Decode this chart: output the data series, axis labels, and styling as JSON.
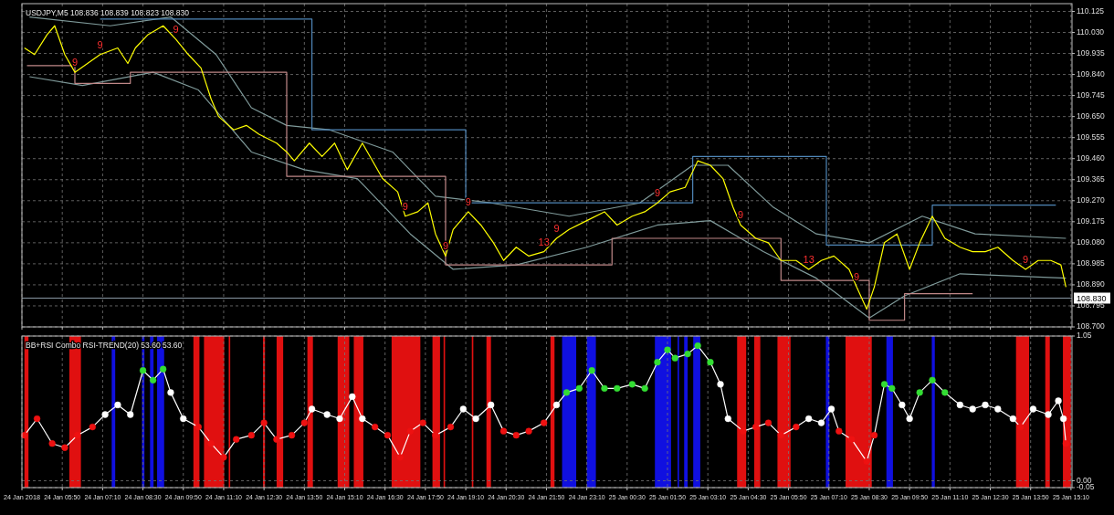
{
  "chart_data": [
    {
      "type": "line",
      "title": "USDJPY,M5  108.836 108.839 108.823 108.830",
      "grid": true,
      "tick_labels": "y",
      "xlim": [
        "2018-01-24T04:30",
        "2018-01-25T15:12"
      ],
      "xticks": [
        {
          "value": "2018-01-24T04:30",
          "label": null
        },
        {
          "value": "2018-01-24T05:50",
          "label": null
        },
        {
          "value": "2018-01-24T07:10",
          "label": null
        },
        {
          "value": "2018-01-24T08:30",
          "label": null
        },
        {
          "value": "2018-01-24T09:50",
          "label": null
        },
        {
          "value": "2018-01-24T11:10",
          "label": null
        },
        {
          "value": "2018-01-24T12:30",
          "label": null
        },
        {
          "value": "2018-01-24T13:50",
          "label": null
        },
        {
          "value": "2018-01-24T15:10",
          "label": null
        },
        {
          "value": "2018-01-24T16:30",
          "label": null
        },
        {
          "value": "2018-01-24T17:50",
          "label": null
        },
        {
          "value": "2018-01-24T19:10",
          "label": null
        },
        {
          "value": "2018-01-24T20:30",
          "label": null
        },
        {
          "value": "2018-01-24T21:50",
          "label": null
        },
        {
          "value": "2018-01-24T23:10",
          "label": null
        },
        {
          "value": "2018-01-25T00:30",
          "label": null
        },
        {
          "value": "2018-01-25T01:50",
          "label": null
        },
        {
          "value": "2018-01-25T03:10",
          "label": null
        },
        {
          "value": "2018-01-25T04:30",
          "label": null
        },
        {
          "value": "2018-01-25T05:50",
          "label": null
        },
        {
          "value": "2018-01-25T07:10",
          "label": null
        },
        {
          "value": "2018-01-25T08:30",
          "label": null
        },
        {
          "value": "2018-01-25T09:50",
          "label": null
        },
        {
          "value": "2018-01-25T11:10",
          "label": null
        },
        {
          "value": "2018-01-25T12:30",
          "label": null
        },
        {
          "value": "2018-01-25T13:50",
          "label": null
        },
        {
          "value": "2018-01-25T15:10",
          "label": null
        }
      ],
      "ylim": [
        108.7,
        110.16
      ],
      "yticks": [
        110.125,
        {
          "value": 110.03,
          "label": "110.030"
        },
        109.935,
        {
          "value": 109.84,
          "label": "109.840"
        },
        109.745,
        {
          "value": 109.65,
          "label": "109.650"
        },
        109.555,
        {
          "value": 109.46,
          "label": "109.460"
        },
        109.365,
        {
          "value": 109.27,
          "label": "109.270"
        },
        109.175,
        {
          "value": 109.08,
          "label": "109.080"
        },
        108.985,
        {
          "value": 108.89,
          "label": "108.890"
        },
        108.795,
        {
          "value": 108.7,
          "label": "108.700"
        }
      ],
      "ref_lines": [
        {
          "axis": "y",
          "value": 108.83,
          "label": "108.830",
          "color": "#8a9aa6"
        }
      ],
      "series": [
        {
          "type": "line",
          "color": "#7f9a9a",
          "x": [
            "2018-01-24T04:45",
            "2018-01-24T07:25",
            "2018-01-24T09:25",
            "2018-01-24T10:55",
            "2018-01-24T12:05",
            "2018-01-24T13:15",
            "2018-01-24T14:40",
            "2018-01-24T16:45",
            "2018-01-24T18:10",
            "2018-01-24T20:00",
            "2018-01-24T22:35",
            "2018-01-25T00:55",
            "2018-01-25T02:40",
            "2018-01-25T03:50",
            "2018-01-25T05:20",
            "2018-01-25T06:45",
            "2018-01-25T08:30",
            "2018-01-25T10:15",
            "2018-01-25T12:00",
            "2018-01-25T15:00"
          ],
          "values": [
            110.1,
            110.06,
            110.1,
            109.93,
            109.69,
            109.61,
            109.59,
            109.49,
            109.29,
            109.26,
            109.2,
            109.26,
            109.43,
            109.43,
            109.24,
            109.12,
            109.08,
            109.2,
            109.12,
            109.1
          ]
        },
        {
          "type": "line",
          "color": "#7f9a9a",
          "x": [
            "2018-01-24T04:45",
            "2018-01-24T06:30",
            "2018-01-24T08:50",
            "2018-01-24T10:20",
            "2018-01-24T12:05",
            "2018-01-24T13:50",
            "2018-01-24T15:35",
            "2018-01-24T17:20",
            "2018-01-24T18:45",
            "2018-01-24T20:50",
            "2018-01-24T23:10",
            "2018-01-25T01:30",
            "2018-01-25T03:15",
            "2018-01-25T05:00",
            "2018-01-25T06:45",
            "2018-01-25T08:30",
            "2018-01-25T09:40",
            "2018-01-25T11:30",
            "2018-01-25T15:00"
          ],
          "values": [
            109.83,
            109.79,
            109.85,
            109.77,
            109.49,
            109.41,
            109.37,
            109.12,
            108.96,
            108.98,
            109.06,
            109.16,
            109.18,
            109.04,
            108.92,
            108.74,
            108.84,
            108.94,
            108.92
          ]
        },
        {
          "type": "step",
          "color": "#4f86b8",
          "x": [
            "2018-01-24T07:05",
            "2018-01-24T14:05",
            "2018-01-24T19:10",
            "2018-01-25T02:40",
            "2018-01-25T07:05",
            "2018-01-25T10:35",
            "2018-01-25T14:40"
          ],
          "values": [
            110.09,
            109.59,
            109.26,
            109.47,
            109.07,
            109.25,
            109.25
          ]
        },
        {
          "type": "step",
          "color": "#c08888",
          "x": [
            "2018-01-24T04:40",
            "2018-01-24T06:15",
            "2018-01-24T08:05",
            "2018-01-24T13:15",
            "2018-01-24T18:30",
            "2018-01-25T00:00",
            "2018-01-25T05:35",
            "2018-01-25T08:30",
            "2018-01-25T09:40",
            "2018-01-25T11:55"
          ],
          "values": [
            109.88,
            109.8,
            109.85,
            109.38,
            108.98,
            109.1,
            108.91,
            108.73,
            108.85,
            108.85
          ]
        },
        {
          "type": "line",
          "color": "#ffff00",
          "x": [
            "2018-01-24T04:35",
            "2018-01-24T04:55",
            "2018-01-24T05:20",
            "2018-01-24T05:35",
            "2018-01-24T05:55",
            "2018-01-24T06:15",
            "2018-01-24T06:40",
            "2018-01-24T07:05",
            "2018-01-24T07:40",
            "2018-01-24T08:00",
            "2018-01-24T08:15",
            "2018-01-24T08:40",
            "2018-01-24T09:10",
            "2018-01-24T09:35",
            "2018-01-24T10:00",
            "2018-01-24T10:25",
            "2018-01-24T10:45",
            "2018-01-24T11:00",
            "2018-01-24T11:30",
            "2018-01-24T11:55",
            "2018-01-24T12:20",
            "2018-01-24T12:55",
            "2018-01-24T13:15",
            "2018-01-24T13:30",
            "2018-01-24T14:00",
            "2018-01-24T14:25",
            "2018-01-24T14:50",
            "2018-01-24T15:15",
            "2018-01-24T15:45",
            "2018-01-24T16:00",
            "2018-01-24T16:25",
            "2018-01-24T16:55",
            "2018-01-24T17:10",
            "2018-01-24T17:35",
            "2018-01-24T17:55",
            "2018-01-24T18:10",
            "2018-01-24T18:30",
            "2018-01-24T18:45",
            "2018-01-24T19:15",
            "2018-01-24T19:40",
            "2018-01-24T20:05",
            "2018-01-24T20:25",
            "2018-01-24T20:50",
            "2018-01-24T21:15",
            "2018-01-24T21:45",
            "2018-01-24T22:10",
            "2018-01-24T22:35",
            "2018-01-24T23:10",
            "2018-01-24T23:45",
            "2018-01-25T00:10",
            "2018-01-25T00:40",
            "2018-01-25T01:05",
            "2018-01-25T01:30",
            "2018-01-25T01:55",
            "2018-01-25T02:25",
            "2018-01-25T02:50",
            "2018-01-25T03:15",
            "2018-01-25T03:40",
            "2018-01-25T04:00",
            "2018-01-25T04:15",
            "2018-01-25T04:45",
            "2018-01-25T05:10",
            "2018-01-25T05:35",
            "2018-01-25T06:05",
            "2018-01-25T06:30",
            "2018-01-25T06:55",
            "2018-01-25T07:20",
            "2018-01-25T07:50",
            "2018-01-25T08:05",
            "2018-01-25T08:25",
            "2018-01-25T08:40",
            "2018-01-25T09:00",
            "2018-01-25T09:25",
            "2018-01-25T09:50",
            "2018-01-25T10:10",
            "2018-01-25T10:35",
            "2018-01-25T11:00",
            "2018-01-25T11:30",
            "2018-01-25T11:55",
            "2018-01-25T12:20",
            "2018-01-25T12:45",
            "2018-01-25T13:15",
            "2018-01-25T13:40",
            "2018-01-25T14:05",
            "2018-01-25T14:30",
            "2018-01-25T14:50",
            "2018-01-25T15:00"
          ],
          "values": [
            109.96,
            109.93,
            110.02,
            110.06,
            109.93,
            109.85,
            109.89,
            109.93,
            109.96,
            109.89,
            109.96,
            110.02,
            110.06,
            110,
            109.93,
            109.87,
            109.73,
            109.65,
            109.59,
            109.61,
            109.57,
            109.53,
            109.49,
            109.45,
            109.53,
            109.47,
            109.53,
            109.41,
            109.53,
            109.47,
            109.37,
            109.31,
            109.2,
            109.22,
            109.26,
            109.12,
            109.02,
            109.14,
            109.22,
            109.16,
            109.08,
            109,
            109.06,
            109.02,
            109.04,
            109.1,
            109.14,
            109.18,
            109.22,
            109.16,
            109.2,
            109.22,
            109.26,
            109.31,
            109.33,
            109.45,
            109.43,
            109.37,
            109.24,
            109.16,
            109.1,
            109.08,
            109,
            109,
            108.96,
            109,
            109.02,
            108.96,
            108.88,
            108.78,
            108.88,
            109.08,
            109.12,
            108.96,
            109.08,
            109.2,
            109.1,
            109.06,
            109.04,
            109.04,
            109.06,
            109,
            108.96,
            109,
            109,
            108.98,
            108.88
          ]
        }
      ],
      "annotations": [
        {
          "text": "9",
          "x": "2018-01-24T09:35",
          "y": 110
        },
        {
          "text": "9",
          "x": "2018-01-24T07:05",
          "y": 109.93
        },
        {
          "text": "9",
          "x": "2018-01-24T19:15",
          "y": 109.22
        },
        {
          "text": "13",
          "x": "2018-01-24T21:45",
          "y": 109.04
        },
        {
          "text": "9",
          "x": "2018-01-24T22:10",
          "y": 109.1
        },
        {
          "text": "9",
          "x": "2018-01-25T01:30",
          "y": 109.26
        },
        {
          "text": "9",
          "x": "2018-01-24T06:15",
          "y": 109.85
        },
        {
          "text": "9",
          "x": "2018-01-24T17:10",
          "y": 109.2
        },
        {
          "text": "9",
          "x": "2018-01-24T18:30",
          "y": 109.02
        },
        {
          "text": "9",
          "x": "2018-01-25T04:15",
          "y": 109.16
        },
        {
          "text": "13",
          "x": "2018-01-25T06:30",
          "y": 108.96
        },
        {
          "text": "9",
          "x": "2018-01-25T08:05",
          "y": 108.88
        },
        {
          "text": "9",
          "x": "2018-01-25T13:40",
          "y": 108.96
        }
      ]
    },
    {
      "type": "line",
      "title": "BB+RSI Combo  RSI-TREND(20) 53.60 53.60",
      "grid": true,
      "xlim": [
        "2018-01-24T04:30",
        "2018-01-25T15:12"
      ],
      "xticks": [
        {
          "value": "2018-01-24T04:30",
          "label": "24 Jan 2018"
        },
        {
          "value": "2018-01-24T05:50",
          "label": "24 Jan 05:50"
        },
        {
          "value": "2018-01-24T07:10",
          "label": "24 Jan 07:10"
        },
        {
          "value": "2018-01-24T08:30",
          "label": "24 Jan 08:30"
        },
        {
          "value": "2018-01-24T09:50",
          "label": "24 Jan 09:50"
        },
        {
          "value": "2018-01-24T11:10",
          "label": "24 Jan 11:10"
        },
        {
          "value": "2018-01-24T12:30",
          "label": "24 Jan 12:30"
        },
        {
          "value": "2018-01-24T13:50",
          "label": "24 Jan 13:50"
        },
        {
          "value": "2018-01-24T15:10",
          "label": "24 Jan 15:10"
        },
        {
          "value": "2018-01-24T16:30",
          "label": "24 Jan 16:30"
        },
        {
          "value": "2018-01-24T17:50",
          "label": "24 Jan 17:50"
        },
        {
          "value": "2018-01-24T19:10",
          "label": "24 Jan 19:10"
        },
        {
          "value": "2018-01-24T20:30",
          "label": "24 Jan 20:30"
        },
        {
          "value": "2018-01-24T21:50",
          "label": "24 Jan 21:50"
        },
        {
          "value": "2018-01-24T23:10",
          "label": "24 Jan 23:10"
        },
        {
          "value": "2018-01-25T00:30",
          "label": "25 Jan 00:30"
        },
        {
          "value": "2018-01-25T01:50",
          "label": "25 Jan 01:50"
        },
        {
          "value": "2018-01-25T03:10",
          "label": "25 Jan 03:10"
        },
        {
          "value": "2018-01-25T04:30",
          "label": "25 Jan 04:30"
        },
        {
          "value": "2018-01-25T05:50",
          "label": "25 Jan 05:50"
        },
        {
          "value": "2018-01-25T07:10",
          "label": "25 Jan 07:10"
        },
        {
          "value": "2018-01-25T08:30",
          "label": "25 Jan 08:30"
        },
        {
          "value": "2018-01-25T09:50",
          "label": "25 Jan 09:50"
        },
        {
          "value": "2018-01-25T11:10",
          "label": "25 Jan 11:10"
        },
        {
          "value": "2018-01-25T12:30",
          "label": "25 Jan 12:30"
        },
        {
          "value": "2018-01-25T13:50",
          "label": "25 Jan 13:50"
        },
        {
          "value": "2018-01-25T15:10",
          "label": "25 Jan 15:10"
        }
      ],
      "ylim": [
        -0.05,
        1.05
      ],
      "yticks": [
        1.05,
        {
          "value": 0,
          "label": "0.00"
        },
        -0.05
      ],
      "bands": [
        {
          "axis": "x",
          "from": "2018-01-24T04:35",
          "to": "2018-01-24T04:43",
          "color": "#e01010"
        },
        {
          "axis": "x",
          "from": "2018-01-24T06:04",
          "to": "2018-01-24T06:27",
          "color": "#e01010"
        },
        {
          "axis": "x",
          "from": "2018-01-24T10:10",
          "to": "2018-01-24T10:22",
          "color": "#e01010"
        },
        {
          "axis": "x",
          "from": "2018-01-24T10:31",
          "to": "2018-01-24T11:11",
          "color": "#e01010"
        },
        {
          "axis": "x",
          "from": "2018-01-24T11:20",
          "to": "2018-01-24T11:23",
          "color": "#e01010"
        },
        {
          "axis": "x",
          "from": "2018-01-24T12:28",
          "to": "2018-01-24T12:32",
          "color": "#e01010"
        },
        {
          "axis": "x",
          "from": "2018-01-24T12:55",
          "to": "2018-01-24T13:08",
          "color": "#e01010"
        },
        {
          "axis": "x",
          "from": "2018-01-24T13:56",
          "to": "2018-01-24T14:07",
          "color": "#e01010"
        },
        {
          "axis": "x",
          "from": "2018-01-24T14:56",
          "to": "2018-01-24T15:19",
          "color": "#e01010"
        },
        {
          "axis": "x",
          "from": "2018-01-24T15:28",
          "to": "2018-01-24T15:47",
          "color": "#e01010"
        },
        {
          "axis": "x",
          "from": "2018-01-24T16:43",
          "to": "2018-01-24T17:40",
          "color": "#e01010"
        },
        {
          "axis": "x",
          "from": "2018-01-24T18:04",
          "to": "2018-01-24T18:19",
          "color": "#e01010"
        },
        {
          "axis": "x",
          "from": "2018-01-24T18:26",
          "to": "2018-01-24T18:29",
          "color": "#e01010"
        },
        {
          "axis": "x",
          "from": "2018-01-24T19:22",
          "to": "2018-01-24T19:25",
          "color": "#e01010"
        },
        {
          "axis": "x",
          "from": "2018-01-24T19:51",
          "to": "2018-01-24T20:00",
          "color": "#e01010"
        },
        {
          "axis": "x",
          "from": "2018-01-24T21:58",
          "to": "2018-01-24T22:06",
          "color": "#e01010"
        },
        {
          "axis": "x",
          "from": "2018-01-25T04:08",
          "to": "2018-01-25T04:26",
          "color": "#e01010"
        },
        {
          "axis": "x",
          "from": "2018-01-25T04:42",
          "to": "2018-01-25T04:54",
          "color": "#e01010"
        },
        {
          "axis": "x",
          "from": "2018-01-25T05:28",
          "to": "2018-01-25T05:54",
          "color": "#e01010"
        },
        {
          "axis": "x",
          "from": "2018-01-25T07:43",
          "to": "2018-01-25T08:35",
          "color": "#e01010"
        },
        {
          "axis": "x",
          "from": "2018-01-25T13:21",
          "to": "2018-01-25T13:47",
          "color": "#e01010"
        },
        {
          "axis": "x",
          "from": "2018-01-25T14:19",
          "to": "2018-01-25T14:28",
          "color": "#e01010"
        },
        {
          "axis": "x",
          "from": "2018-01-25T14:54",
          "to": "2018-01-25T15:10",
          "color": "#e01010"
        },
        {
          "axis": "x",
          "from": "2018-01-24T07:28",
          "to": "2018-01-24T07:35",
          "color": "#1010e0"
        },
        {
          "axis": "x",
          "from": "2018-01-24T08:28",
          "to": "2018-01-24T08:33",
          "color": "#1010e0"
        },
        {
          "axis": "x",
          "from": "2018-01-24T08:44",
          "to": "2018-01-24T08:51",
          "color": "#1010e0"
        },
        {
          "axis": "x",
          "from": "2018-01-24T08:58",
          "to": "2018-01-24T09:12",
          "color": "#1010e0"
        },
        {
          "axis": "x",
          "from": "2018-01-24T22:21",
          "to": "2018-01-24T22:49",
          "color": "#1010e0"
        },
        {
          "axis": "x",
          "from": "2018-01-24T23:10",
          "to": "2018-01-24T23:28",
          "color": "#1010e0"
        },
        {
          "axis": "x",
          "from": "2018-01-25T01:25",
          "to": "2018-01-25T01:57",
          "color": "#1010e0"
        },
        {
          "axis": "x",
          "from": "2018-01-25T02:10",
          "to": "2018-01-25T02:13",
          "color": "#1010e0"
        },
        {
          "axis": "x",
          "from": "2018-01-25T02:23",
          "to": "2018-01-25T02:30",
          "color": "#1010e0"
        },
        {
          "axis": "x",
          "from": "2018-01-25T02:41",
          "to": "2018-01-25T02:55",
          "color": "#1010e0"
        },
        {
          "axis": "x",
          "from": "2018-01-25T07:04",
          "to": "2018-01-25T07:11",
          "color": "#1010e0"
        },
        {
          "axis": "x",
          "from": "2018-01-25T09:04",
          "to": "2018-01-25T09:17",
          "color": "#1010e0"
        },
        {
          "axis": "x",
          "from": "2018-01-25T10:34",
          "to": "2018-01-25T10:40",
          "color": "#1010e0"
        }
      ],
      "series": [
        {
          "type": "line",
          "color": "#ffffff",
          "x": [
            "2018-01-24T04:35",
            "2018-01-24T05:00",
            "2018-01-24T05:30",
            "2018-01-24T05:55",
            "2018-01-24T06:20",
            "2018-01-24T06:50",
            "2018-01-24T07:15",
            "2018-01-24T07:40",
            "2018-01-24T08:05",
            "2018-01-24T08:30",
            "2018-01-24T08:50",
            "2018-01-24T09:10",
            "2018-01-24T09:25",
            "2018-01-24T09:50",
            "2018-01-24T10:20",
            "2018-01-24T10:45",
            "2018-01-24T11:10",
            "2018-01-24T11:35",
            "2018-01-24T12:05",
            "2018-01-24T12:30",
            "2018-01-24T12:55",
            "2018-01-24T13:25",
            "2018-01-24T13:50",
            "2018-01-24T14:05",
            "2018-01-24T14:35",
            "2018-01-24T15:00",
            "2018-01-24T15:25",
            "2018-01-24T15:45",
            "2018-01-24T16:10",
            "2018-01-24T16:35",
            "2018-01-24T17:00",
            "2018-01-24T17:20",
            "2018-01-24T17:45",
            "2018-01-24T18:10",
            "2018-01-24T18:40",
            "2018-01-24T19:05",
            "2018-01-24T19:30",
            "2018-01-24T20:00",
            "2018-01-24T20:25",
            "2018-01-24T20:50",
            "2018-01-24T21:15",
            "2018-01-24T21:45",
            "2018-01-24T22:10",
            "2018-01-24T22:30",
            "2018-01-24T22:55",
            "2018-01-24T23:20",
            "2018-01-24T23:45",
            "2018-01-25T00:10",
            "2018-01-25T00:40",
            "2018-01-25T01:05",
            "2018-01-25T01:30",
            "2018-01-25T01:50",
            "2018-01-25T02:05",
            "2018-01-25T02:30",
            "2018-01-25T02:50",
            "2018-01-25T03:15",
            "2018-01-25T03:35",
            "2018-01-25T03:50",
            "2018-01-25T04:20",
            "2018-01-25T04:45",
            "2018-01-25T05:10",
            "2018-01-25T05:35",
            "2018-01-25T06:05",
            "2018-01-25T06:30",
            "2018-01-25T06:55",
            "2018-01-25T07:15",
            "2018-01-25T07:30",
            "2018-01-25T07:55",
            "2018-01-25T08:25",
            "2018-01-25T08:40",
            "2018-01-25T09:00",
            "2018-01-25T09:15",
            "2018-01-25T09:35",
            "2018-01-25T09:50",
            "2018-01-25T10:10",
            "2018-01-25T10:35",
            "2018-01-25T11:00",
            "2018-01-25T11:30",
            "2018-01-25T11:55",
            "2018-01-25T12:20",
            "2018-01-25T12:45",
            "2018-01-25T13:15",
            "2018-01-25T13:30",
            "2018-01-25T13:55",
            "2018-01-25T14:25",
            "2018-01-25T14:45",
            "2018-01-25T14:55",
            "2018-01-25T15:00"
          ],
          "values": [
            0.33,
            0.45,
            0.27,
            0.24,
            0.33,
            0.39,
            0.48,
            0.55,
            0.48,
            0.8,
            0.73,
            0.81,
            0.64,
            0.45,
            0.39,
            0.27,
            0.17,
            0.3,
            0.33,
            0.42,
            0.3,
            0.33,
            0.42,
            0.52,
            0.48,
            0.45,
            0.61,
            0.45,
            0.39,
            0.33,
            0.17,
            0.36,
            0.42,
            0.33,
            0.39,
            0.52,
            0.45,
            0.55,
            0.36,
            0.33,
            0.36,
            0.42,
            0.55,
            0.64,
            0.67,
            0.8,
            0.67,
            0.67,
            0.7,
            0.67,
            0.86,
            0.95,
            0.89,
            0.92,
            0.98,
            0.86,
            0.7,
            0.45,
            0.36,
            0.39,
            0.42,
            0.33,
            0.39,
            0.45,
            0.42,
            0.52,
            0.36,
            0.3,
            0.14,
            0.33,
            0.7,
            0.67,
            0.55,
            0.45,
            0.64,
            0.73,
            0.64,
            0.55,
            0.52,
            0.55,
            0.52,
            0.45,
            0.39,
            0.52,
            0.48,
            0.58,
            0.45,
            0.27
          ]
        },
        {
          "type": "scatter",
          "color": "#ee1111",
          "x": [
            "2018-01-24T04:35",
            "2018-01-24T05:00",
            "2018-01-24T05:30",
            "2018-01-24T05:55",
            "2018-01-24T06:20",
            "2018-01-24T06:50",
            "2018-01-24T10:20",
            "2018-01-24T10:45",
            "2018-01-24T11:10",
            "2018-01-24T11:35",
            "2018-01-24T12:05",
            "2018-01-24T12:30",
            "2018-01-24T12:55",
            "2018-01-24T13:25",
            "2018-01-24T13:50",
            "2018-01-24T16:10",
            "2018-01-24T16:35",
            "2018-01-24T17:00",
            "2018-01-24T17:20",
            "2018-01-24T17:45",
            "2018-01-24T18:10",
            "2018-01-24T18:40",
            "2018-01-24T20:25",
            "2018-01-24T20:50",
            "2018-01-24T21:15",
            "2018-01-24T21:45",
            "2018-01-25T04:20",
            "2018-01-25T04:45",
            "2018-01-25T05:10",
            "2018-01-25T05:35",
            "2018-01-25T06:05",
            "2018-01-25T07:30",
            "2018-01-25T07:55",
            "2018-01-25T08:25",
            "2018-01-25T08:40",
            "2018-01-25T13:30",
            "2018-01-25T15:00"
          ],
          "values": [
            0.33,
            0.45,
            0.27,
            0.24,
            0.33,
            0.39,
            0.39,
            0.27,
            0.17,
            0.3,
            0.33,
            0.42,
            0.3,
            0.33,
            0.42,
            0.39,
            0.33,
            0.17,
            0.36,
            0.42,
            0.33,
            0.39,
            0.36,
            0.33,
            0.36,
            0.42,
            0.36,
            0.39,
            0.42,
            0.33,
            0.39,
            0.36,
            0.3,
            0.14,
            0.33,
            0.39,
            0.27
          ]
        },
        {
          "type": "scatter",
          "color": "#ffffff",
          "x": [
            "2018-01-24T07:15",
            "2018-01-24T07:40",
            "2018-01-24T08:05",
            "2018-01-24T09:25",
            "2018-01-24T09:50",
            "2018-01-24T14:05",
            "2018-01-24T14:35",
            "2018-01-24T15:00",
            "2018-01-24T15:25",
            "2018-01-24T15:45",
            "2018-01-24T19:05",
            "2018-01-24T19:30",
            "2018-01-24T20:00",
            "2018-01-24T22:10",
            "2018-01-25T03:35",
            "2018-01-25T03:50",
            "2018-01-25T06:30",
            "2018-01-25T06:55",
            "2018-01-25T07:15",
            "2018-01-25T09:35",
            "2018-01-25T09:50",
            "2018-01-25T11:30",
            "2018-01-25T11:55",
            "2018-01-25T12:20",
            "2018-01-25T12:45",
            "2018-01-25T13:15",
            "2018-01-25T13:55",
            "2018-01-25T14:25",
            "2018-01-25T14:45",
            "2018-01-25T14:55"
          ],
          "values": [
            0.48,
            0.55,
            0.48,
            0.64,
            0.45,
            0.52,
            0.48,
            0.45,
            0.61,
            0.45,
            0.52,
            0.45,
            0.55,
            0.55,
            0.7,
            0.45,
            0.45,
            0.42,
            0.52,
            0.55,
            0.45,
            0.55,
            0.52,
            0.55,
            0.52,
            0.45,
            0.52,
            0.48,
            0.58,
            0.45
          ]
        },
        {
          "type": "scatter",
          "color": "#33dd33",
          "x": [
            "2018-01-24T08:30",
            "2018-01-24T08:50",
            "2018-01-24T09:10",
            "2018-01-24T22:30",
            "2018-01-24T22:55",
            "2018-01-24T23:20",
            "2018-01-24T23:45",
            "2018-01-25T00:10",
            "2018-01-25T00:40",
            "2018-01-25T01:05",
            "2018-01-25T01:30",
            "2018-01-25T01:50",
            "2018-01-25T02:05",
            "2018-01-25T02:30",
            "2018-01-25T02:50",
            "2018-01-25T03:15",
            "2018-01-25T09:00",
            "2018-01-25T09:15",
            "2018-01-25T10:10",
            "2018-01-25T10:35",
            "2018-01-25T11:00"
          ],
          "values": [
            0.8,
            0.73,
            0.81,
            0.64,
            0.67,
            0.8,
            0.67,
            0.67,
            0.7,
            0.67,
            0.86,
            0.95,
            0.89,
            0.92,
            0.98,
            0.86,
            0.7,
            0.67,
            0.64,
            0.73,
            0.64
          ]
        }
      ]
    }
  ]
}
